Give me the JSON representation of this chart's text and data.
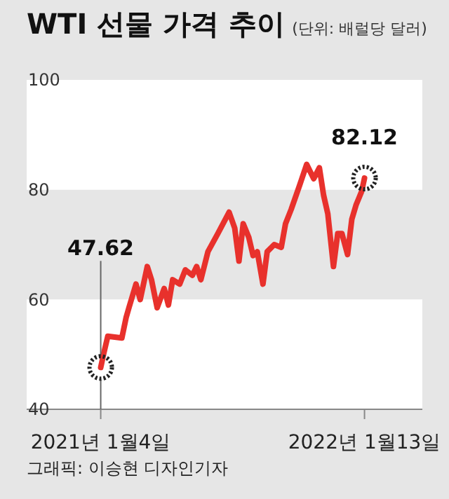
{
  "chart_data": {
    "type": "line",
    "title": "WTI 선물 가격 추이",
    "subtitle": "(단위: 배럴당 달러)",
    "x": [
      "2021-01-04",
      "2021-01-08",
      "2021-01-14",
      "2021-02-03",
      "2021-02-09",
      "2021-02-13",
      "2021-02-23",
      "2021-03-01",
      "2021-03-11",
      "2021-03-17",
      "2021-03-25",
      "2021-04-04",
      "2021-04-10",
      "2021-04-16",
      "2021-04-26",
      "2021-05-04",
      "2021-05-14",
      "2021-05-20",
      "2021-05-26",
      "2021-06-05",
      "2021-06-19",
      "2021-07-05",
      "2021-07-13",
      "2021-07-19",
      "2021-07-25",
      "2021-08-02",
      "2021-08-08",
      "2021-08-14",
      "2021-08-22",
      "2021-08-28",
      "2021-09-07",
      "2021-09-17",
      "2021-09-23",
      "2021-10-01",
      "2021-10-13",
      "2021-10-23",
      "2021-11-02",
      "2021-11-10",
      "2021-11-16",
      "2021-11-22",
      "2021-11-30",
      "2021-12-06",
      "2021-12-12",
      "2021-12-20",
      "2021-12-26",
      "2022-01-01",
      "2022-01-09",
      "2022-01-13"
    ],
    "series": [
      {
        "color": "#e8312c",
        "values": [
          47.62,
          50,
          53.3,
          53,
          56.7,
          58.5,
          62.8,
          60,
          66,
          63.6,
          58.5,
          62,
          59,
          63.6,
          62.8,
          65.4,
          64.4,
          66,
          63.6,
          68.7,
          72,
          75.9,
          73,
          67,
          73.8,
          71.3,
          68,
          68.7,
          62.8,
          68.7,
          70,
          69.5,
          73.8,
          76.4,
          80.8,
          84.6,
          82,
          84,
          79,
          75.6,
          66,
          72,
          72,
          68.2,
          74.6,
          77.2,
          79.7,
          82.12
        ]
      }
    ],
    "xlim": [
      "2020-09-21",
      "2022-04-05"
    ],
    "xticks": [
      {
        "value": "2021-01-04",
        "label": "2021년 1월4일"
      },
      {
        "value": "2022-01-13",
        "label": "2022년 1월13일"
      }
    ],
    "ylim": [
      40,
      100
    ],
    "yticks": [
      40,
      60,
      80,
      100
    ],
    "bands": [
      {
        "axis": "y",
        "from": 60,
        "to": 80,
        "color": "#e6e6e6"
      }
    ],
    "annotations": [
      {
        "text": "47.62",
        "x": "2021-01-04",
        "y": 47.62
      },
      {
        "text": "82.12",
        "x": "2022-01-13",
        "y": 82.12
      },
      "그래픽: 이승현 디자인기자"
    ],
    "line_style": "solid",
    "grid": false,
    "legend": false
  }
}
